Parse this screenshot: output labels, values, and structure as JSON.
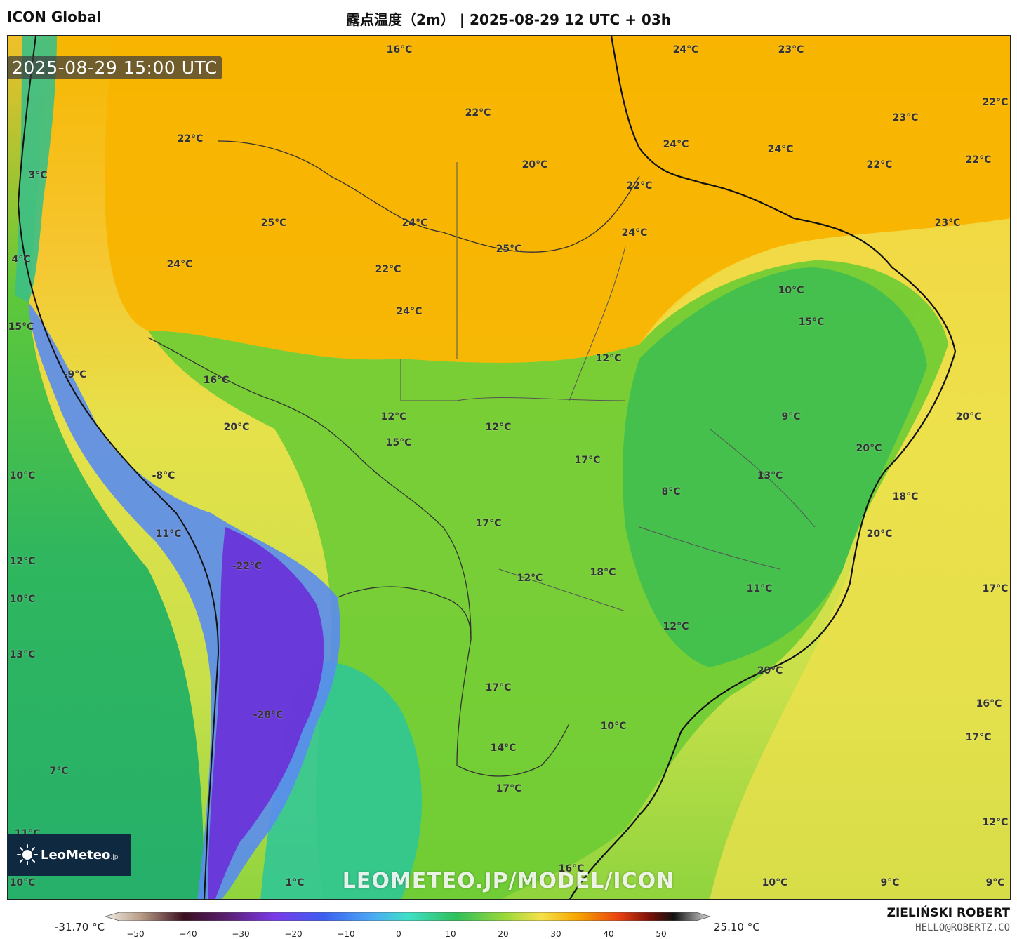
{
  "header": {
    "model": "ICON Global",
    "title": "露点温度（2m） | 2025-08-29 12 UTC + 03h"
  },
  "time_badge": "2025-08-29 15:00 UTC",
  "watermark": "LEOMETEO.JP/MODEL/ICON",
  "logo": {
    "brand": "LeoMeteo",
    "suffix": ".jp"
  },
  "colorbar": {
    "min_label": "-31.70 °C",
    "max_label": "25.10 °C",
    "ticks": [
      "−50",
      "−40",
      "−30",
      "−20",
      "−10",
      "0",
      "10",
      "20",
      "30",
      "40",
      "50"
    ]
  },
  "credit": {
    "name": "ZIELIŃSKI ROBERT",
    "email": "HELLO@ROBERTZ.CO"
  },
  "labels": [
    "16°C",
    "24°C",
    "23°C",
    "22°C",
    "22°C",
    "22°C",
    "23°C",
    "20°C",
    "24°C",
    "24°C",
    "22°C",
    "22°C",
    "22°C",
    "23°C",
    "3°C",
    "25°C",
    "24°C",
    "24°C",
    "25°C",
    "22°C",
    "24°C",
    "4°C",
    "24°C",
    "10°C",
    "15°C",
    "15°C",
    "12°C",
    "-9°C",
    "16°C",
    "12°C",
    "20°C",
    "9°C",
    "20°C",
    "12°C",
    "15°C",
    "20°C",
    "17°C",
    "-8°C",
    "10°C",
    "8°C",
    "13°C",
    "18°C",
    "17°C",
    "11°C",
    "20°C",
    "12°C",
    "-22°C",
    "12°C",
    "18°C",
    "11°C",
    "17°C",
    "10°C",
    "13°C",
    "12°C",
    "20°C",
    "17°C",
    "16°C",
    "-28°C",
    "10°C",
    "14°C",
    "17°C",
    "7°C",
    "17°C",
    "12°C",
    "16°C",
    "10°C",
    "1°C",
    "10°C",
    "9°C",
    "9°C",
    "11°C"
  ],
  "colors": {
    "warm": "#f7b500",
    "yellow": "#f3d54a",
    "green": "#5ec83a",
    "teal": "#2fb88a",
    "purple": "#6a3ad8",
    "coastline": "#111111"
  }
}
